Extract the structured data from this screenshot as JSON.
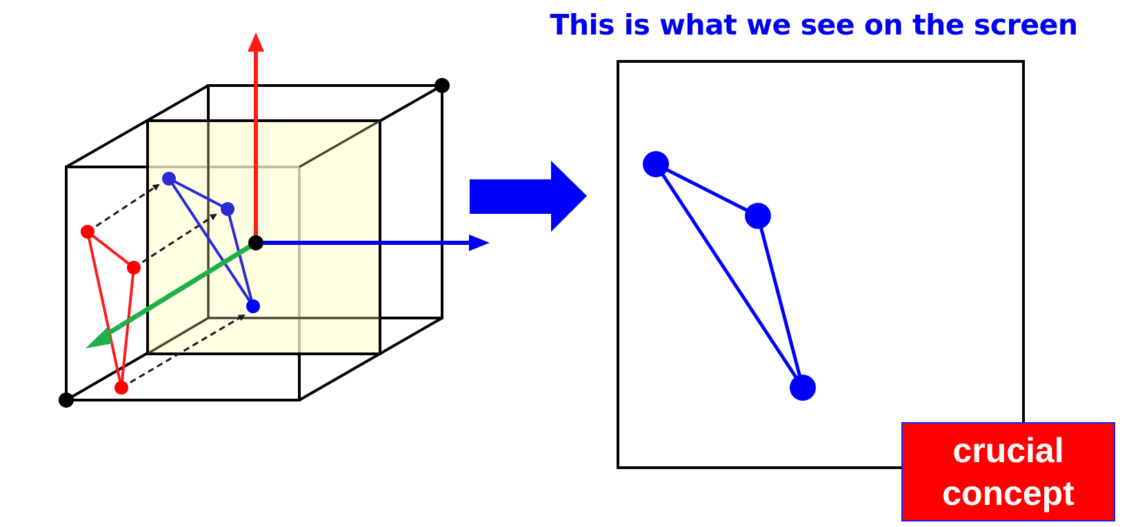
{
  "title": "This is what we see on the screen",
  "badge": {
    "line1": "crucial",
    "line2": "concept"
  },
  "colors": {
    "background": "#ffffff",
    "title": "#0000ee",
    "frustum_edges": "#000000",
    "projection_plane_fill": "#ffffe0",
    "triangle_3d": "#ff0000",
    "triangle_projected": "#2a2ad8",
    "triangle_screen": "#0000ff",
    "axis_up": "#ff1a1a",
    "axis_right": "#0000ee",
    "axis_depth": "#1fb04a",
    "projection_rays": "#1a1a1a",
    "transition_arrow": "#0000ff",
    "badge_fill": "#ff0000",
    "badge_border": "#1a1aff",
    "badge_text": "#ffffff"
  },
  "icons": {
    "transition": "right-arrow-icon"
  }
}
